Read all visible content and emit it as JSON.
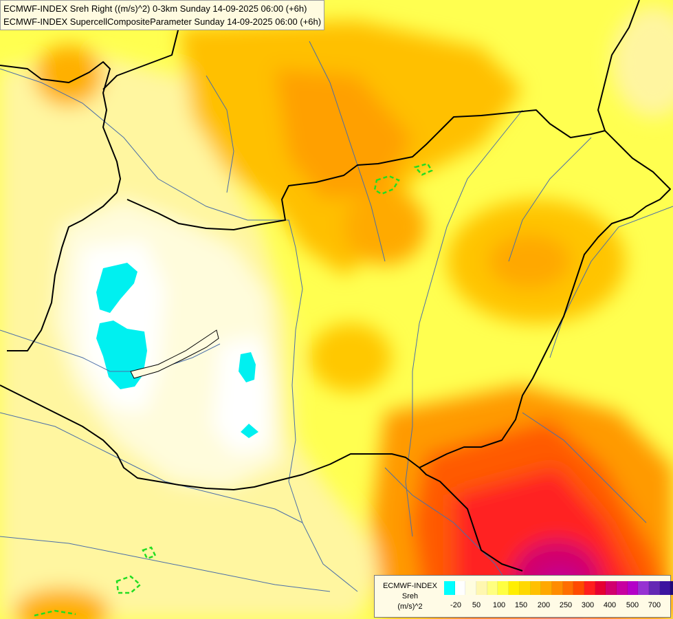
{
  "header": {
    "line1": "ECMWF-INDEX Sreh Right ((m/s)^2) 0-3km Sunday 14-09-2025 06:00 (+6h)",
    "line2": "ECMWF-INDEX SupercellCompositeParameter Sunday 14-09-2025 06:00 (+6h)"
  },
  "legend": {
    "title_line1": "ECMWF-INDEX",
    "title_line2": "Sreh",
    "title_line3": "(m/s)^2",
    "colors": [
      "#00ffff",
      "#ffffff",
      "#fffde0",
      "#fff7b0",
      "#ffff80",
      "#ffff40",
      "#ffee00",
      "#ffd800",
      "#ffc000",
      "#ffa800",
      "#ff8c00",
      "#ff6e00",
      "#ff4a00",
      "#ff1e1e",
      "#e60032",
      "#d2006e",
      "#c800a0",
      "#b400c8",
      "#9632d2",
      "#6428b4",
      "#3c14a0",
      "#1e0a78",
      "#0a0046"
    ],
    "tick_labels": [
      "-20",
      "50",
      "100",
      "150",
      "200",
      "250",
      "300",
      "400",
      "500",
      "700"
    ]
  },
  "map": {
    "background_color": "#ffff80",
    "border_color": "#000000",
    "river_color": "#4a6ea8",
    "cell_outline_color": "#22dd22"
  }
}
